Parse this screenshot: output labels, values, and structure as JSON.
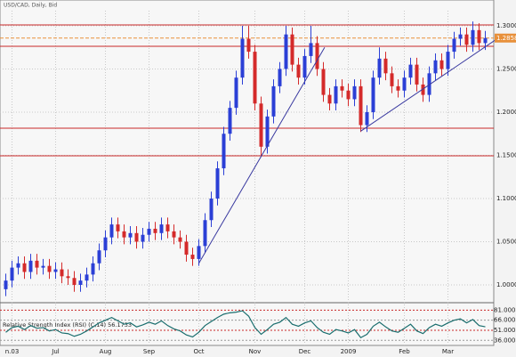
{
  "chart_data": {
    "type": "candlestick",
    "title": "USD/CAD, Daily, Bid",
    "categories": [
      null,
      "n.03",
      null,
      null,
      null,
      null,
      null,
      null,
      "Jul",
      null,
      null,
      null,
      null,
      null,
      null,
      null,
      "Aug",
      null,
      null,
      null,
      null,
      null,
      null,
      "Sep",
      null,
      null,
      null,
      null,
      null,
      null,
      null,
      "Oct",
      null,
      null,
      null,
      null,
      null,
      null,
      null,
      null,
      "Nov",
      null,
      null,
      null,
      null,
      null,
      null,
      null,
      "Dec",
      null,
      null,
      null,
      null,
      null,
      null,
      "2009",
      null,
      null,
      null,
      null,
      null,
      null,
      null,
      null,
      "Feb",
      null,
      null,
      null,
      null,
      null,
      null,
      "Mar",
      null,
      null,
      null,
      null,
      null,
      null
    ],
    "open": [
      0.995,
      1.005,
      1.02,
      1.025,
      1.015,
      1.028,
      1.02,
      1.022,
      1.015,
      1.018,
      1.01,
      1.008,
      1.0,
      1.005,
      1.012,
      1.025,
      1.04,
      1.055,
      1.07,
      1.062,
      1.055,
      1.06,
      1.05,
      1.058,
      1.065,
      1.06,
      1.07,
      1.062,
      1.055,
      1.05,
      1.035,
      1.03,
      1.045,
      1.075,
      1.1,
      1.135,
      1.175,
      1.205,
      1.24,
      1.285,
      1.27,
      1.21,
      1.16,
      1.195,
      1.23,
      1.25,
      1.29,
      1.255,
      1.24,
      1.265,
      1.28,
      1.25,
      1.22,
      1.21,
      1.23,
      1.225,
      1.215,
      1.23,
      1.185,
      1.2,
      1.24,
      1.262,
      1.245,
      1.23,
      1.225,
      1.24,
      1.255,
      1.232,
      1.22,
      1.245,
      1.26,
      1.25,
      1.27,
      1.285,
      1.29,
      1.278,
      1.295,
      1.28
    ],
    "high": [
      1.013,
      1.028,
      1.033,
      1.033,
      1.036,
      1.036,
      1.03,
      1.03,
      1.026,
      1.026,
      1.018,
      1.016,
      1.013,
      1.02,
      1.033,
      1.048,
      1.063,
      1.078,
      1.078,
      1.07,
      1.068,
      1.068,
      1.066,
      1.073,
      1.073,
      1.078,
      1.078,
      1.07,
      1.063,
      1.058,
      1.043,
      1.053,
      1.083,
      1.108,
      1.143,
      1.183,
      1.213,
      1.248,
      1.3,
      1.3,
      1.278,
      1.218,
      1.203,
      1.238,
      1.258,
      1.3,
      1.298,
      1.263,
      1.273,
      1.3,
      1.288,
      1.258,
      1.228,
      1.238,
      1.238,
      1.233,
      1.238,
      1.238,
      1.208,
      1.248,
      1.275,
      1.27,
      1.253,
      1.238,
      1.248,
      1.263,
      1.263,
      1.24,
      1.253,
      1.268,
      1.268,
      1.278,
      1.293,
      1.298,
      1.298,
      1.305,
      1.303,
      1.294
    ],
    "low": [
      0.987,
      0.997,
      1.012,
      1.007,
      1.007,
      1.012,
      1.012,
      1.007,
      1.007,
      1.002,
      1.0,
      0.992,
      0.992,
      0.997,
      1.004,
      1.017,
      1.032,
      1.047,
      1.054,
      1.047,
      1.047,
      1.042,
      1.042,
      1.05,
      1.052,
      1.052,
      1.054,
      1.047,
      1.042,
      1.027,
      1.022,
      1.022,
      1.037,
      1.067,
      1.092,
      1.127,
      1.167,
      1.197,
      1.232,
      1.262,
      1.202,
      1.15,
      1.152,
      1.187,
      1.222,
      1.242,
      1.247,
      1.232,
      1.232,
      1.257,
      1.242,
      1.212,
      1.202,
      1.202,
      1.217,
      1.207,
      1.207,
      1.177,
      1.177,
      1.192,
      1.232,
      1.237,
      1.222,
      1.217,
      1.217,
      1.232,
      1.224,
      1.212,
      1.212,
      1.237,
      1.242,
      1.242,
      1.262,
      1.277,
      1.27,
      1.27,
      1.272,
      1.272
    ],
    "close": [
      1.005,
      1.02,
      1.025,
      1.015,
      1.028,
      1.02,
      1.022,
      1.015,
      1.018,
      1.01,
      1.008,
      1.0,
      1.005,
      1.012,
      1.025,
      1.04,
      1.055,
      1.07,
      1.062,
      1.055,
      1.06,
      1.05,
      1.058,
      1.065,
      1.06,
      1.07,
      1.062,
      1.055,
      1.05,
      1.035,
      1.03,
      1.045,
      1.075,
      1.1,
      1.135,
      1.175,
      1.205,
      1.24,
      1.285,
      1.27,
      1.21,
      1.16,
      1.195,
      1.23,
      1.25,
      1.29,
      1.255,
      1.24,
      1.265,
      1.28,
      1.25,
      1.22,
      1.21,
      1.23,
      1.225,
      1.215,
      1.23,
      1.185,
      1.2,
      1.24,
      1.262,
      1.245,
      1.23,
      1.225,
      1.24,
      1.255,
      1.232,
      1.22,
      1.245,
      1.26,
      1.25,
      1.27,
      1.285,
      1.29,
      1.278,
      1.295,
      1.28,
      1.2858
    ],
    "up_color": "#2b3fd6",
    "down_color": "#d42a2a",
    "ylim": [
      0.9794,
      1.3175
    ],
    "yticks": [
      {
        "value": 1.0,
        "label": "1.0000"
      },
      {
        "value": 1.05,
        "label": "1.0500"
      },
      {
        "value": 1.1,
        "label": "1.1000"
      },
      {
        "value": 1.15,
        "label": "1.1500"
      },
      {
        "value": 1.2,
        "label": "1.2000"
      },
      {
        "value": 1.25,
        "label": "1.2500"
      },
      {
        "value": 1.3,
        "label": "1.3000"
      }
    ],
    "current_price": 1.2858,
    "levels": [
      1.301,
      1.2763,
      1.1814,
      1.1495
    ],
    "level_color": "#c82828",
    "trendlines": [
      {
        "from": [
          31,
          1.025
        ],
        "to": [
          51.2,
          1.275
        ]
      },
      {
        "from": [
          57,
          1.178
        ],
        "to": [
          78.5,
          1.283
        ]
      }
    ],
    "trendline_color": "#3a3aa0",
    "grid": true,
    "rsi": {
      "label": "Relative Strength Index (RSI) (C,14) 56.1733",
      "color": "#1a6e6e",
      "values": [
        48,
        55,
        57,
        52,
        58,
        54,
        55,
        50,
        52,
        47,
        46,
        42,
        45,
        50,
        56,
        62,
        66,
        70,
        65,
        60,
        62,
        56,
        59,
        63,
        60,
        65,
        58,
        53,
        50,
        44,
        41,
        48,
        58,
        64,
        70,
        75,
        77,
        78,
        80,
        72,
        55,
        45,
        52,
        60,
        63,
        70,
        60,
        57,
        62,
        65,
        55,
        48,
        45,
        52,
        50,
        47,
        52,
        40,
        45,
        57,
        63,
        56,
        50,
        48,
        54,
        60,
        50,
        46,
        55,
        60,
        57,
        62,
        66,
        68,
        62,
        67,
        58,
        56.1733
      ],
      "ylim": [
        28.4,
        89.4
      ],
      "yticks": [
        {
          "value": 36,
          "label": "36.0000"
        },
        {
          "value": 51,
          "label": "51.0000"
        },
        {
          "value": 66,
          "label": "66.0000"
        },
        {
          "value": 81,
          "label": "81.0000"
        }
      ]
    }
  }
}
